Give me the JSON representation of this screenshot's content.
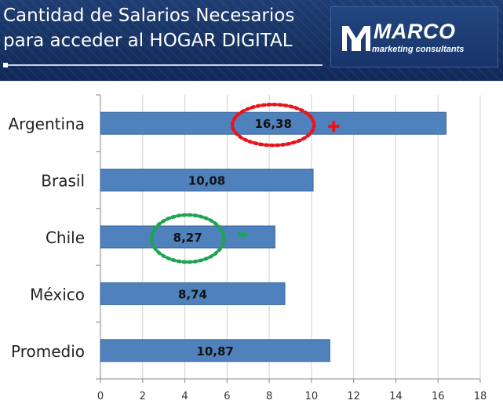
{
  "header": {
    "title_line1": "Cantidad de Salarios Necesarios",
    "title_line2": "para acceder al HOGAR DIGITAL",
    "logo_name": "MARCO",
    "logo_sub": "marketing consultants"
  },
  "colors": {
    "bar": "#4f81bd",
    "bar_edge": "#3a659b",
    "high_marker": "#e8141c",
    "low_marker": "#1ea352"
  },
  "chart_data": {
    "type": "bar",
    "orientation": "horizontal",
    "categories": [
      "Argentina",
      "Brasil",
      "Chile",
      "México",
      "Promedio"
    ],
    "values": [
      16.38,
      10.08,
      8.27,
      8.74,
      10.87
    ],
    "value_labels": [
      "16,38",
      "10,08",
      "8,27",
      "8,74",
      "10,87"
    ],
    "xlim": [
      0,
      18
    ],
    "x_ticks": [
      "0",
      "2",
      "4",
      "6",
      "8",
      "10",
      "12",
      "14",
      "16",
      "18"
    ],
    "grid": true,
    "annotations": [
      {
        "category": "Argentina",
        "shape": "dotted-ellipse",
        "color": "#e8141c",
        "symbol": "+"
      },
      {
        "category": "Chile",
        "shape": "dotted-ellipse",
        "color": "#1ea352",
        "symbol": "-"
      }
    ]
  }
}
